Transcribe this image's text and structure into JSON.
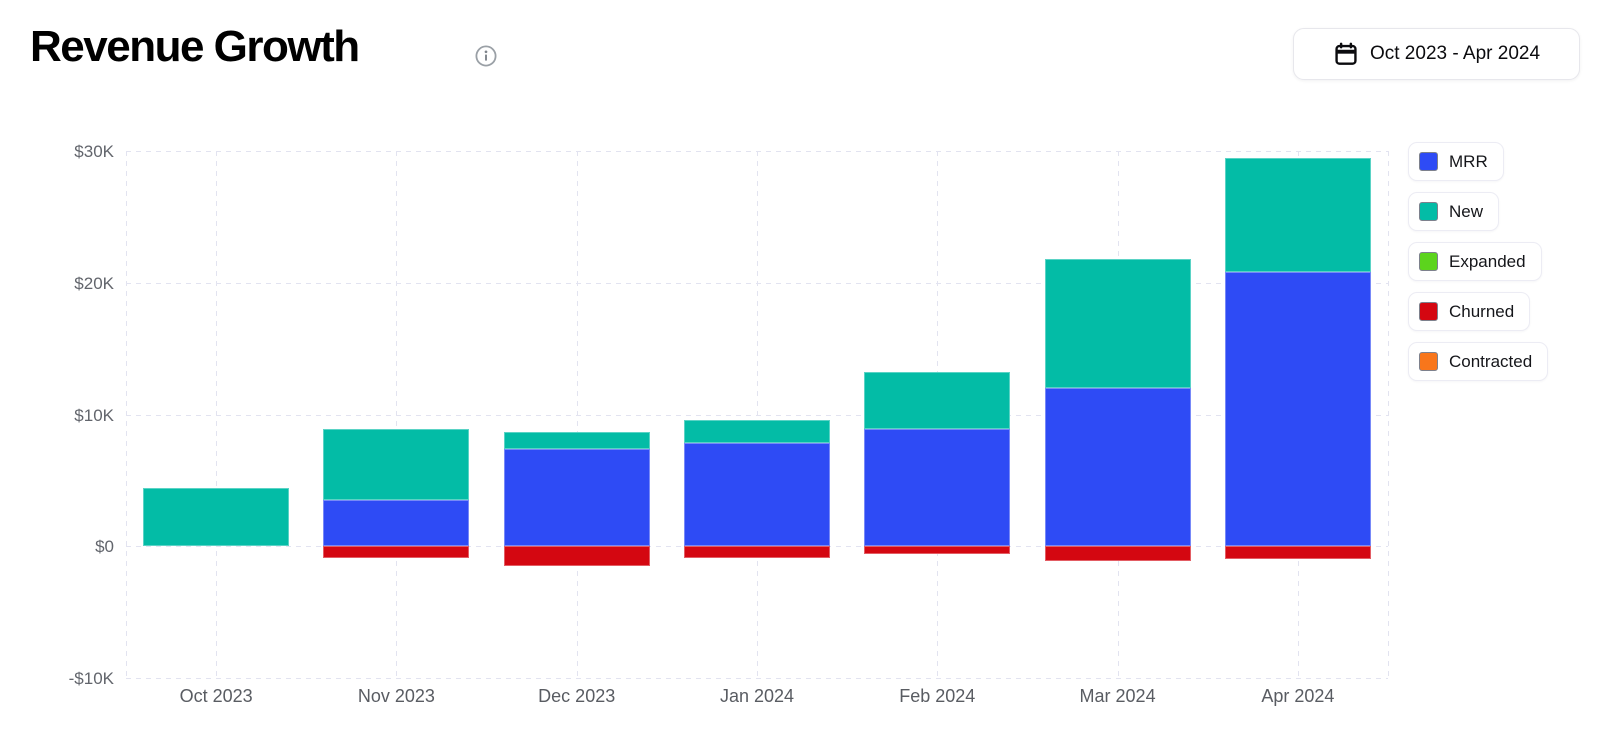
{
  "header": {
    "title": "Revenue Growth",
    "info_icon": "info-icon",
    "date_range": "Oct 2023 - Apr 2024",
    "date_icon": "calendar-icon"
  },
  "colors": {
    "mrr": "#2E4BF5",
    "new": "#03BCA6",
    "expanded": "#5CD41D",
    "churned": "#D40711",
    "contracted": "#F8761B",
    "grid": "#E2E3F0",
    "axis_text": "#62656C"
  },
  "chart_data": {
    "type": "bar",
    "stacked": true,
    "title": "Revenue Growth",
    "categories": [
      "Oct 2023",
      "Nov 2023",
      "Dec 2023",
      "Jan 2024",
      "Feb 2024",
      "Mar 2024",
      "Apr 2024"
    ],
    "series": [
      {
        "name": "MRR",
        "color": "#2E4BF5",
        "values": [
          0,
          3500,
          7400,
          7800,
          8900,
          12000,
          20800
        ]
      },
      {
        "name": "New",
        "color": "#03BCA6",
        "values": [
          4400,
          5400,
          1300,
          1800,
          4300,
          9800,
          8700
        ]
      },
      {
        "name": "Expanded",
        "color": "#5CD41D",
        "values": [
          0,
          0,
          0,
          0,
          0,
          0,
          0
        ]
      },
      {
        "name": "Churned",
        "color": "#D40711",
        "values": [
          0,
          -900,
          -1500,
          -900,
          -600,
          -1100,
          -1000
        ]
      },
      {
        "name": "Contracted",
        "color": "#F8761B",
        "values": [
          0,
          0,
          0,
          0,
          0,
          0,
          0
        ]
      }
    ],
    "y_ticks": [
      {
        "value": 30000,
        "label": "$30K"
      },
      {
        "value": 20000,
        "label": "$20K"
      },
      {
        "value": 10000,
        "label": "$10K"
      },
      {
        "value": 0,
        "label": "$0"
      },
      {
        "value": -10000,
        "label": "-$10K"
      }
    ],
    "ylim": [
      -10000,
      30000
    ],
    "xlabel": "",
    "ylabel": "",
    "grid": "dashed",
    "legend_position": "right"
  }
}
